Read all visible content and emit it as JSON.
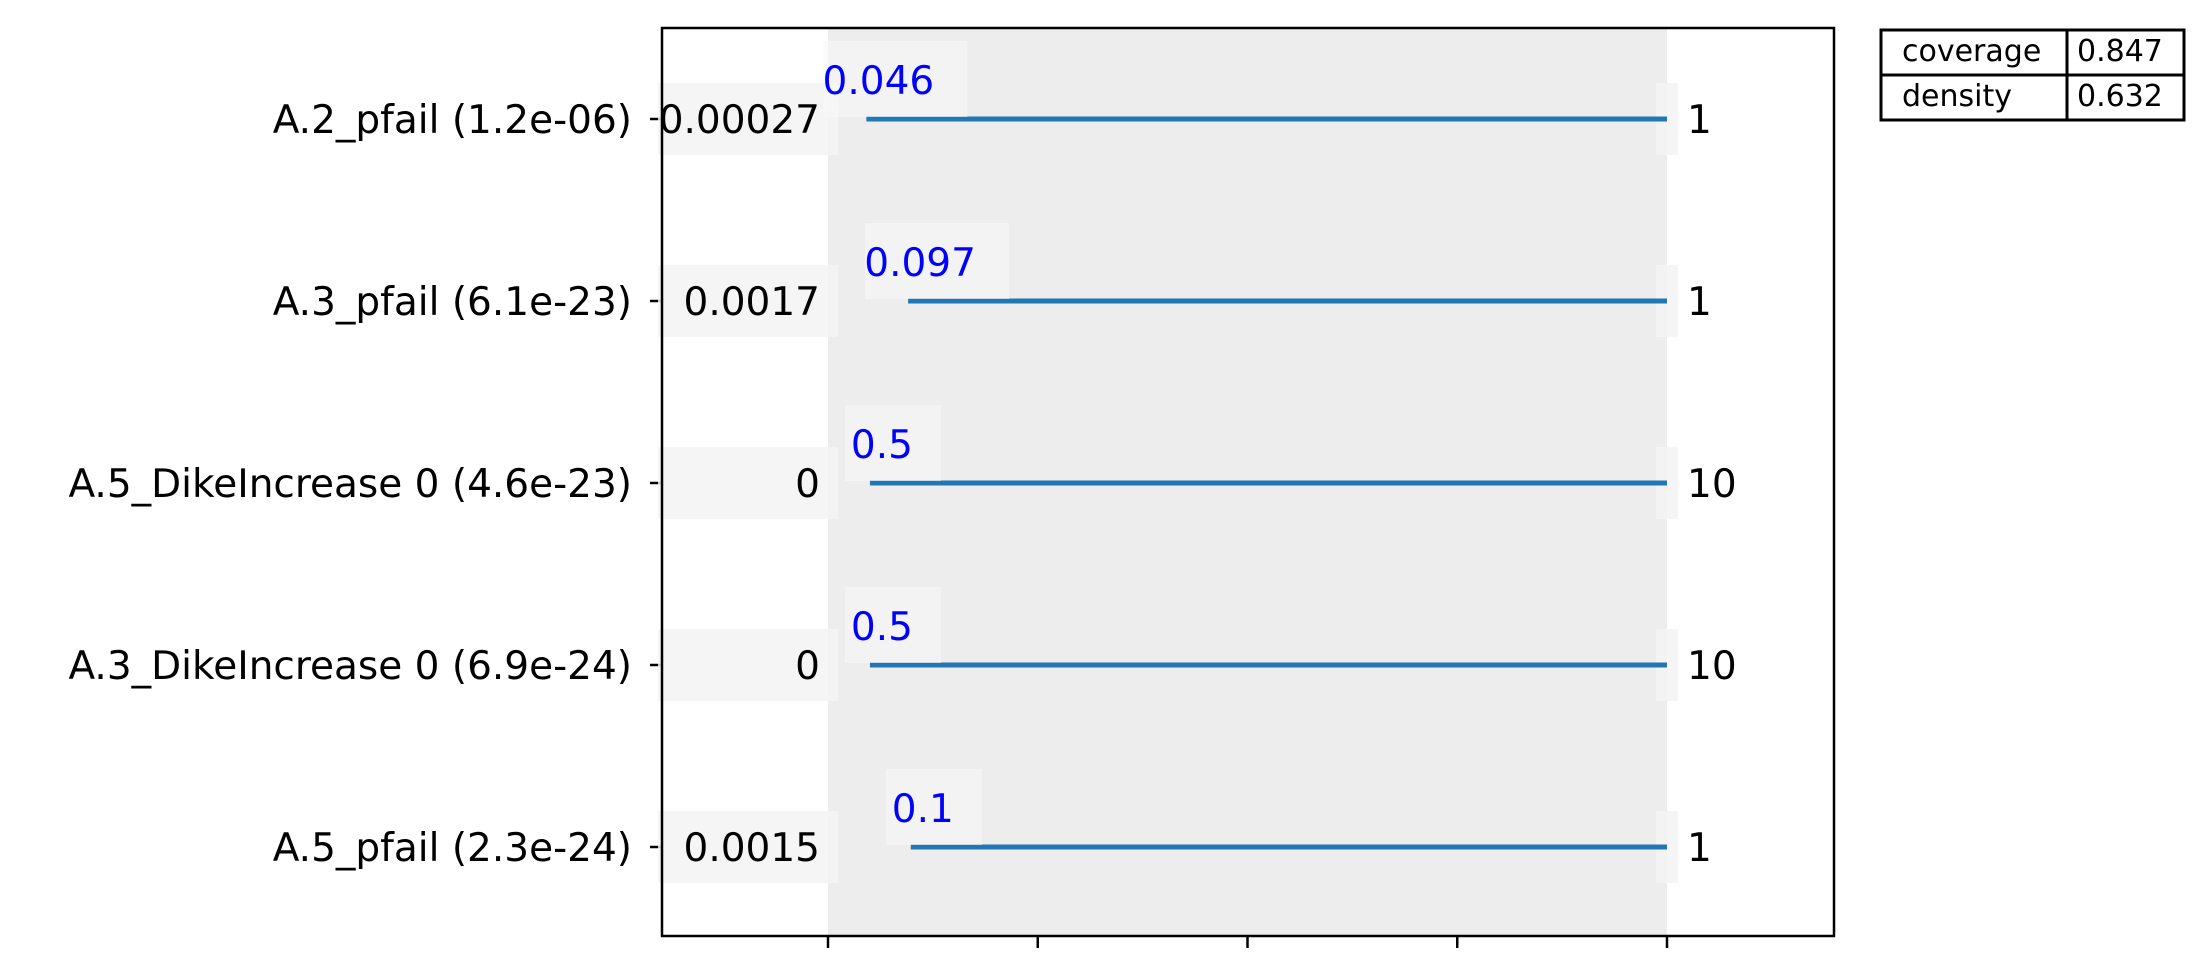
{
  "chart_data": {
    "type": "box-restriction",
    "dimensions": [
      {
        "label": "A.2_pfail (1.2e-06)",
        "lower": "0.00027",
        "upper": "1",
        "restricted_lower": "0.046",
        "range_min": 0.00027,
        "range_max": 1,
        "box_min": 0.046,
        "box_max": 1
      },
      {
        "label": "A.3_pfail (6.1e-23)",
        "lower": "0.0017",
        "upper": "1",
        "restricted_lower": "0.097",
        "range_min": 0.0017,
        "range_max": 1,
        "box_min": 0.097,
        "box_max": 1
      },
      {
        "label": "A.5_DikeIncrease 0 (4.6e-23)",
        "lower": "0",
        "upper": "10",
        "restricted_lower": "0.5",
        "range_min": 0,
        "range_max": 10,
        "box_min": 0.5,
        "box_max": 10
      },
      {
        "label": "A.3_DikeIncrease 0 (6.9e-24)",
        "lower": "0",
        "upper": "10",
        "restricted_lower": "0.5",
        "range_min": 0,
        "range_max": 10,
        "box_min": 0.5,
        "box_max": 10
      },
      {
        "label": "A.5_pfail (2.3e-24)",
        "lower": "0.0015",
        "upper": "1",
        "restricted_lower": "0.1",
        "range_min": 0.0015,
        "range_max": 1,
        "box_min": 0.1,
        "box_max": 1
      }
    ],
    "stats": [
      {
        "name": "coverage",
        "value": "0.847"
      },
      {
        "name": "density",
        "value": "0.632"
      }
    ],
    "x_ticks": 5,
    "colors": {
      "line": "#1f77b4",
      "restricted_text": "#0000ff",
      "shade": "#ededed",
      "frame": "#000000"
    }
  }
}
